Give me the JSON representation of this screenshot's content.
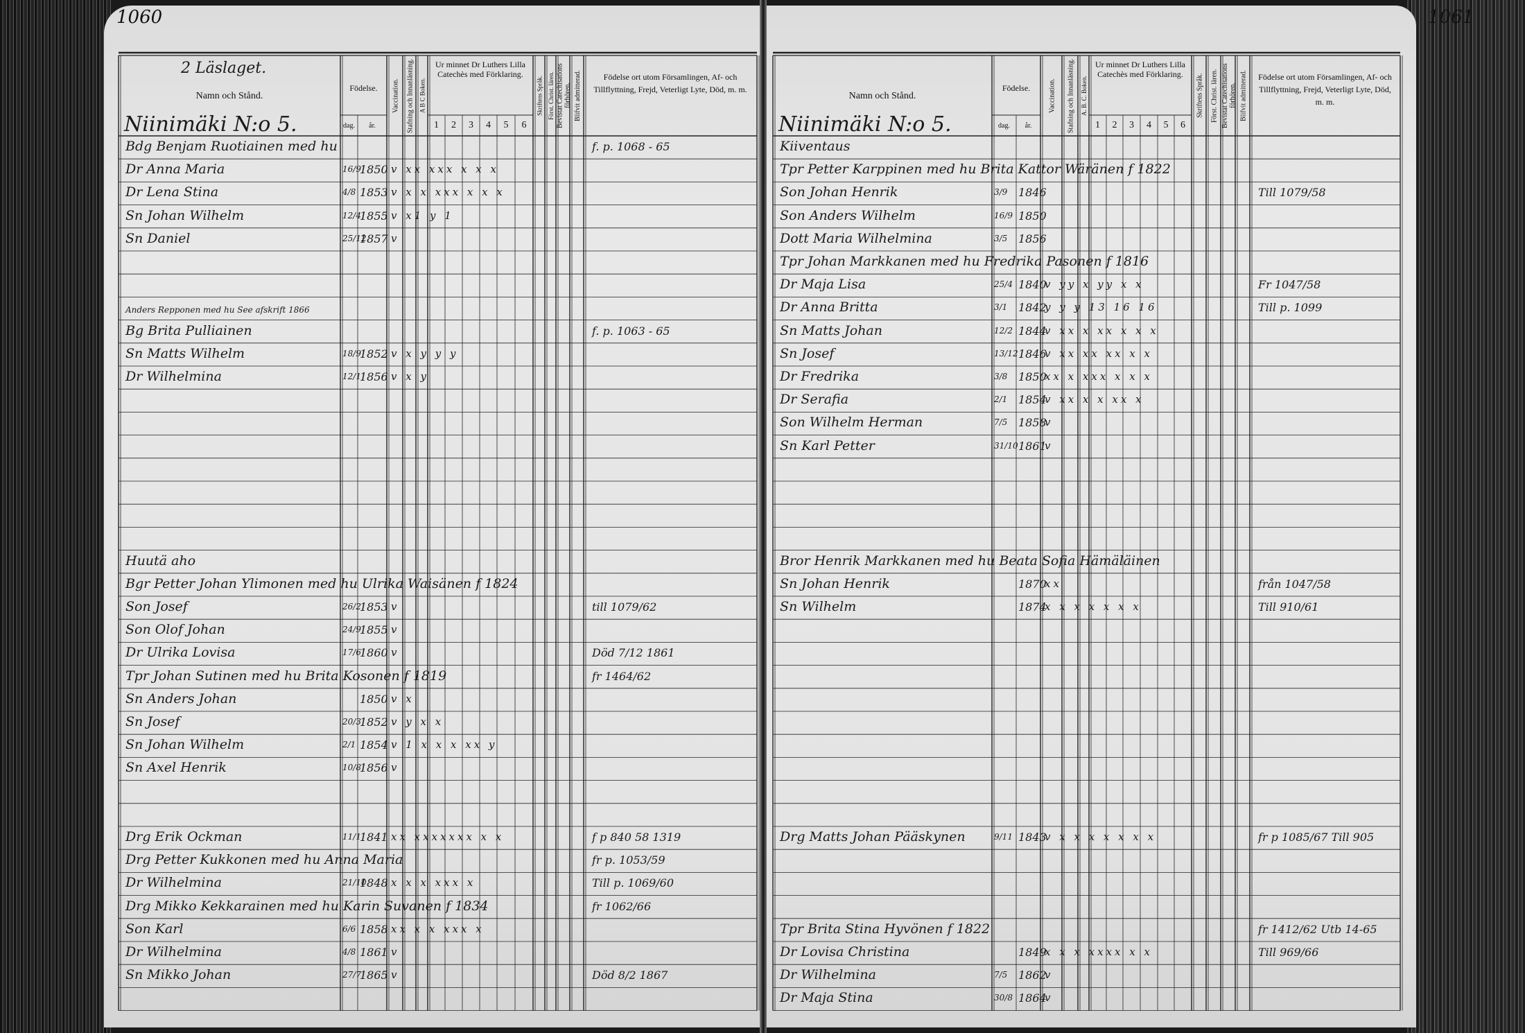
{
  "left": {
    "page_number": "1060",
    "headers": {
      "class_label": "2 Läslaget.",
      "name": "Namn och Stånd.",
      "birth": "Födelse.",
      "day": "dag.",
      "year": "år.",
      "vaccination": "Vaccination.",
      "spelling": "Stafning och Innanläsning.",
      "abc": "A B C Boken.",
      "catechism": "Ur minnet Dr Luthers Lilla Catechès med Förklaring.",
      "catechism_cols": [
        "1",
        "2",
        "3",
        "4",
        "5",
        "6"
      ],
      "scripture": "Skriftens Språk.",
      "christianity": "Först. Christ. lären.",
      "examinations": "Bevistat Catechisations förhören.",
      "admitted": "Blifvit admitterad.",
      "remarks": "Födelse ort utom Församlingen, Af- och Tillflyttning, Frejd, Veterligt Lyte, Död, m. m."
    },
    "section_title": "Niinimäki N:o 5.",
    "rows": [
      {
        "name": "Bdg Benjam Ruotiainen med hu",
        "marks": "",
        "note": "f. p. 1068 - 65"
      },
      {
        "name": "Dr Anna Maria",
        "day": "16/9",
        "year": "1850",
        "marks": "v xx xxx x x x"
      },
      {
        "name": "Dr Lena Stina",
        "day": "4/8",
        "year": "1853",
        "marks": "v x x xxx x x x"
      },
      {
        "name": "Sn Johan Wilhelm",
        "day": "12/4",
        "year": "1855",
        "marks": "v x1 y 1"
      },
      {
        "name": "Sn Daniel",
        "day": "25/12",
        "year": "1857",
        "marks": "v"
      },
      {},
      {},
      {
        "name": "Anders Repponen med hu  See afskrift 1866",
        "small": true
      },
      {
        "name": "Bg Brita Pulliainen",
        "note": "f. p. 1063 - 65"
      },
      {
        "name": "Sn Matts Wilhelm",
        "day": "18/9",
        "year": "1852",
        "marks": "v x y y y"
      },
      {
        "name": "Dr Wilhelmina",
        "day": "12/1",
        "year": "1856",
        "marks": "v x y"
      },
      {},
      {},
      {},
      {},
      {},
      {},
      {},
      {
        "name": "Huutä aho"
      },
      {
        "name": "Bgr Petter Johan Ylimonen med hu Ulrika Waisänen f 1824"
      },
      {
        "name": "Son Josef",
        "day": "26/2",
        "year": "1853",
        "marks": "v",
        "note": "till 1079/62"
      },
      {
        "name": "Son Olof Johan",
        "day": "24/9",
        "year": "1855",
        "marks": "v"
      },
      {
        "name": "Dr Ulrika Lovisa",
        "day": "17/6",
        "year": "1860",
        "marks": "v",
        "note": "Död 7/12 1861"
      },
      {
        "name": "Tpr Johan Sutinen med hu Brita Kosonen f 1819",
        "note": "fr 1464/62"
      },
      {
        "name": "Sn Anders Johan",
        "year": "1850",
        "marks": "v x"
      },
      {
        "name": "Sn Josef",
        "day": "20/3",
        "year": "1852",
        "marks": "v y x x"
      },
      {
        "name": "Sn Johan Wilhelm",
        "day": "2/1",
        "year": "1854",
        "marks": "v 1 x x x xx y"
      },
      {
        "name": "Sn Axel Henrik",
        "day": "10/8",
        "year": "1856",
        "marks": "v"
      },
      {},
      {},
      {
        "name": "Drg Erik Ockman",
        "day": "11/1",
        "year": "1841",
        "marks": "xx xxxxxxx x x",
        "note": "f p 840 58 1319"
      },
      {
        "name": "Drg Petter Kukkonen med hu Anna Maria",
        "note": "fr p. 1053/59"
      },
      {
        "name": "Dr Wilhelmina",
        "day": "21/10",
        "year": "1848",
        "marks": "x x x xxx x",
        "note": "Till p. 1069/60"
      },
      {
        "name": "Drg Mikko Kekkarainen med hu Karin Suvanen f 1834",
        "note": "fr 1062/66"
      },
      {
        "name": "Son Karl",
        "day": "6/6",
        "year": "1858",
        "marks": "xx x x xxx x"
      },
      {
        "name": "Dr Wilhelmina",
        "day": "4/8",
        "year": "1861",
        "marks": "v"
      },
      {
        "name": "Sn Mikko Johan",
        "day": "27/7",
        "year": "1865",
        "marks": "v",
        "note": "Död 8/2 1867"
      },
      {}
    ]
  },
  "right": {
    "page_number": "1061",
    "headers": {
      "name": "Namn och Stånd.",
      "birth": "Födelse.",
      "day": "dag.",
      "year": "år.",
      "vaccination": "Vaccination.",
      "spelling": "Stafning och Innanläsning.",
      "abc": "A. B. C. Boken.",
      "catechism": "Ur minnet Dr Luthers Lilla Catechès med Förklaring.",
      "catechism_cols": [
        "1",
        "2",
        "3",
        "4",
        "5",
        "6"
      ],
      "scripture": "Skriftens Språk.",
      "christianity": "Först. Christ. lären.",
      "examinations": "Bevistat Catechisations förhören.",
      "admitted": "Blifvit admitterad.",
      "remarks": "Födelse ort utom Församlingen, Af- och Tillflyttning, Frejd, Veterligt Lyte, Död, m. m."
    },
    "section_title": "Niinimäki N:o 5.",
    "rows": [
      {
        "name": "Kiiventaus"
      },
      {
        "name": "Tpr Petter Karppinen med hu Brita Kattor Wäränen f 1822"
      },
      {
        "name": "Son Johan Henrik",
        "day": "3/9",
        "year": "1846",
        "note": "Till 1079/58"
      },
      {
        "name": "Son Anders Wilhelm",
        "day": "16/9",
        "year": "1850"
      },
      {
        "name": "Dott Maria Wilhelmina",
        "day": "3/5",
        "year": "1856"
      },
      {
        "name": "Tpr Johan Markkanen med hu Fredrika Pasonen f 1816"
      },
      {
        "name": "Dr Maja Lisa",
        "day": "25/4",
        "year": "1840",
        "marks": "v yy x yy x x",
        "note": "Fr 1047/58"
      },
      {
        "name": "Dr Anna Britta",
        "day": "3/1",
        "year": "1842",
        "marks": "y y y 13 16 16",
        "note": "Till p. 1099"
      },
      {
        "name": "Sn Matts Johan",
        "day": "12/2",
        "year": "1844",
        "marks": "v xx x xx x x x"
      },
      {
        "name": "Sn Josef",
        "day": "13/12",
        "year": "1846",
        "marks": "v xx xx xx x x"
      },
      {
        "name": "Dr Fredrika",
        "day": "3/8",
        "year": "1850",
        "marks": "xx x xxx x x x"
      },
      {
        "name": "Dr Serafia",
        "day": "2/1",
        "year": "1854",
        "marks": "v xx x x xx x"
      },
      {
        "name": "Son Wilhelm Herman",
        "day": "7/5",
        "year": "1858",
        "marks": "v"
      },
      {
        "name": "Sn Karl Petter",
        "day": "31/10",
        "year": "1861",
        "marks": "v"
      },
      {},
      {},
      {},
      {},
      {
        "name": "Bror Henrik Markkanen med hu Beata Sofia Hämäläinen"
      },
      {
        "name": "Sn Johan Henrik",
        "year": "1870",
        "marks": "xx",
        "note": "från 1047/58"
      },
      {
        "name": "Sn Wilhelm",
        "year": "1874",
        "marks": "x x x x x x x",
        "note": "Till 910/61"
      },
      {},
      {},
      {},
      {},
      {},
      {},
      {},
      {},
      {},
      {
        "name": "Drg Matts Johan Pääskynen",
        "day": "9/11",
        "year": "1843",
        "marks": "v x x x x x x x",
        "note": "fr p 1085/67 Till 905"
      },
      {},
      {},
      {},
      {
        "name": "Tpr Brita Stina Hyvönen f 1822",
        "note": "fr 1412/62  Utb 14-65"
      },
      {
        "name": "Dr Lovisa Christina",
        "year": "1849",
        "marks": "x x x xxxx x x",
        "note": "Till 969/66"
      },
      {
        "name": "Dr Wilhelmina",
        "day": "7/5",
        "year": "1862",
        "marks": "v"
      },
      {
        "name": "Dr Maja Stina",
        "day": "30/8",
        "year": "1864",
        "marks": "v"
      }
    ]
  }
}
